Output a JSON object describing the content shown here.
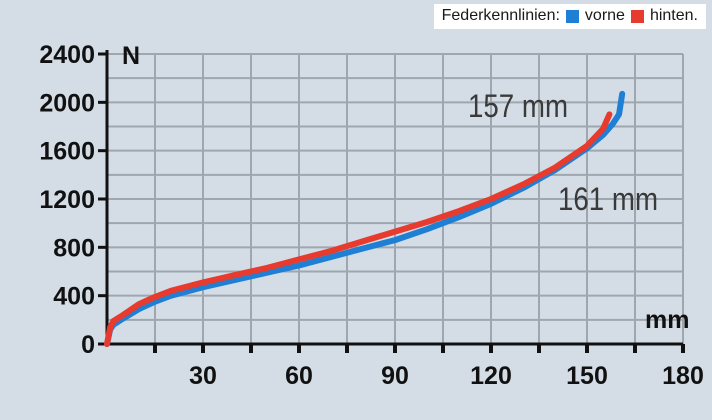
{
  "legend": {
    "title": "Federkennlinien:",
    "items": [
      {
        "label": "vorne",
        "color": "#1e7fd4"
      },
      {
        "label": "hinten.",
        "color": "#e63b2e"
      }
    ]
  },
  "chart_data": {
    "type": "line",
    "title": "",
    "xlabel": "mm",
    "ylabel": "N",
    "xlim": [
      0,
      180
    ],
    "ylim": [
      0,
      2400
    ],
    "x_ticks": [
      30,
      60,
      90,
      120,
      150,
      180
    ],
    "y_ticks": [
      0,
      400,
      800,
      1200,
      1600,
      2000,
      2400
    ],
    "grid": true,
    "legend_position": "top-right",
    "series": [
      {
        "name": "vorne",
        "color": "#1e7fd4",
        "x": [
          0,
          1,
          2,
          5,
          10,
          15,
          20,
          30,
          40,
          50,
          60,
          70,
          80,
          90,
          100,
          110,
          120,
          130,
          140,
          150,
          155,
          158,
          160,
          161
        ],
        "y": [
          0,
          120,
          160,
          210,
          290,
          350,
          400,
          470,
          530,
          590,
          650,
          720,
          790,
          860,
          950,
          1050,
          1160,
          1290,
          1440,
          1620,
          1730,
          1820,
          1900,
          2070
        ]
      },
      {
        "name": "hinten.",
        "color": "#e63b2e",
        "x": [
          0,
          1,
          2,
          5,
          10,
          15,
          20,
          30,
          40,
          50,
          60,
          70,
          80,
          90,
          100,
          110,
          120,
          130,
          140,
          150,
          155,
          157
        ],
        "y": [
          0,
          140,
          190,
          240,
          330,
          390,
          440,
          510,
          570,
          630,
          700,
          770,
          850,
          930,
          1010,
          1100,
          1200,
          1320,
          1460,
          1640,
          1780,
          1900
        ]
      }
    ],
    "annotations": [
      {
        "text": "157 mm",
        "series": "hinten."
      },
      {
        "text": "161 mm",
        "series": "vorne"
      }
    ]
  }
}
